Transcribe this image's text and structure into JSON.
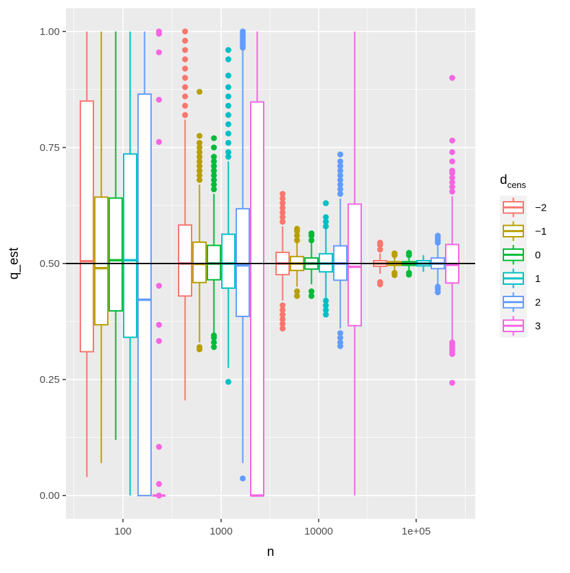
{
  "chart_data": {
    "type": "boxplot",
    "xlabel": "n",
    "ylabel": "q_est",
    "categories": [
      "100",
      "1000",
      "10000",
      "1e+05"
    ],
    "x_scale": "log10",
    "ylim": [
      -0.05,
      1.05
    ],
    "yticks": [
      {
        "value": 0.0,
        "label": "0.00"
      },
      {
        "value": 0.25,
        "label": "0.25"
      },
      {
        "value": 0.5,
        "label": "0.50"
      },
      {
        "value": 0.75,
        "label": "0.75"
      },
      {
        "value": 1.0,
        "label": "1.00"
      }
    ],
    "reference_line": {
      "y": 0.5,
      "color": "#000000"
    },
    "grid": true,
    "legend": {
      "title_main": "d",
      "title_sub": "cens",
      "placement": "right",
      "entries": [
        {
          "label": "−2",
          "color": "#F8766D"
        },
        {
          "label": "−1",
          "color": "#B79F00"
        },
        {
          "label": "0",
          "color": "#00BA38"
        },
        {
          "label": "1",
          "color": "#00BFC4"
        },
        {
          "label": "2",
          "color": "#619CFF"
        },
        {
          "label": "3",
          "color": "#F564E3"
        }
      ]
    },
    "series": [
      {
        "name": "−2",
        "color": "#F8766D",
        "boxes": [
          {
            "q1": 0.31,
            "median": 0.505,
            "q3": 0.85,
            "lo": 0.04,
            "hi": 1.0,
            "outliers": []
          },
          {
            "q1": 0.43,
            "median": 0.5,
            "q3": 0.583,
            "lo": 0.205,
            "hi": 0.81,
            "outliers": [
              0.82,
              0.84,
              0.86,
              0.88,
              0.9,
              0.92,
              0.94,
              0.96,
              0.98,
              1.0
            ]
          },
          {
            "q1": 0.476,
            "median": 0.5,
            "q3": 0.524,
            "lo": 0.42,
            "hi": 0.58,
            "outliers": [
              0.36,
              0.37,
              0.38,
              0.39,
              0.4,
              0.41,
              0.59,
              0.6,
              0.61,
              0.62,
              0.63,
              0.64,
              0.65
            ]
          },
          {
            "q1": 0.494,
            "median": 0.5,
            "q3": 0.506,
            "lo": 0.478,
            "hi": 0.522,
            "outliers": [
              0.455,
              0.46,
              0.53,
              0.54,
              0.545
            ]
          }
        ]
      },
      {
        "name": "−1",
        "color": "#B79F00",
        "boxes": [
          {
            "q1": 0.368,
            "median": 0.49,
            "q3": 0.643,
            "lo": 0.07,
            "hi": 1.0,
            "outliers": []
          },
          {
            "q1": 0.459,
            "median": 0.499,
            "q3": 0.546,
            "lo": 0.33,
            "hi": 0.67,
            "outliers": [
              0.315,
              0.32,
              0.68,
              0.69,
              0.7,
              0.71,
              0.72,
              0.73,
              0.74,
              0.75,
              0.76,
              0.775,
              0.87
            ]
          },
          {
            "q1": 0.485,
            "median": 0.5,
            "q3": 0.515,
            "lo": 0.45,
            "hi": 0.545,
            "outliers": [
              0.43,
              0.44,
              0.55,
              0.56,
              0.57,
              0.575
            ]
          },
          {
            "q1": 0.496,
            "median": 0.5,
            "q3": 0.504,
            "lo": 0.484,
            "hi": 0.516,
            "outliers": [
              0.475,
              0.48,
              0.518,
              0.522
            ]
          }
        ]
      },
      {
        "name": "0",
        "color": "#00BA38",
        "boxes": [
          {
            "q1": 0.398,
            "median": 0.507,
            "q3": 0.641,
            "lo": 0.12,
            "hi": 1.0,
            "outliers": []
          },
          {
            "q1": 0.465,
            "median": 0.5,
            "q3": 0.539,
            "lo": 0.35,
            "hi": 0.65,
            "outliers": [
              0.32,
              0.33,
              0.34,
              0.345,
              0.66,
              0.67,
              0.68,
              0.69,
              0.7,
              0.71,
              0.72,
              0.73,
              0.75,
              0.77
            ]
          },
          {
            "q1": 0.488,
            "median": 0.5,
            "q3": 0.512,
            "lo": 0.455,
            "hi": 0.545,
            "outliers": [
              0.43,
              0.44,
              0.55,
              0.56,
              0.565
            ]
          },
          {
            "q1": 0.496,
            "median": 0.5,
            "q3": 0.504,
            "lo": 0.485,
            "hi": 0.515,
            "outliers": [
              0.476,
              0.48,
              0.518,
              0.523
            ]
          }
        ]
      },
      {
        "name": "1",
        "color": "#00BFC4",
        "boxes": [
          {
            "q1": 0.341,
            "median": 0.507,
            "q3": 0.736,
            "lo": 0.0,
            "hi": 1.0,
            "outliers": []
          },
          {
            "q1": 0.447,
            "median": 0.5,
            "q3": 0.563,
            "lo": 0.275,
            "hi": 0.72,
            "outliers": [
              0.245,
              0.73,
              0.74,
              0.76,
              0.78,
              0.8,
              0.82,
              0.84,
              0.86,
              0.88,
              0.905,
              0.94,
              0.96
            ]
          },
          {
            "q1": 0.482,
            "median": 0.5,
            "q3": 0.521,
            "lo": 0.425,
            "hi": 0.575,
            "outliers": [
              0.39,
              0.4,
              0.41,
              0.42,
              0.58,
              0.59,
              0.6,
              0.63
            ]
          },
          {
            "q1": 0.495,
            "median": 0.5,
            "q3": 0.506,
            "lo": 0.482,
            "hi": 0.518,
            "outliers": []
          }
        ]
      },
      {
        "name": "2",
        "color": "#619CFF",
        "boxes": [
          {
            "q1": 0.0,
            "median": 0.422,
            "q3": 0.865,
            "lo": 0.0,
            "hi": 1.0,
            "outliers": []
          },
          {
            "q1": 0.386,
            "median": 0.496,
            "q3": 0.618,
            "lo": 0.07,
            "hi": 0.96,
            "outliers": [
              0.037,
              0.965,
              0.97,
              0.975,
              0.98,
              0.985,
              0.99,
              0.995,
              1.0
            ]
          },
          {
            "q1": 0.464,
            "median": 0.5,
            "q3": 0.538,
            "lo": 0.36,
            "hi": 0.64,
            "outliers": [
              0.322,
              0.33,
              0.34,
              0.35,
              0.65,
              0.66,
              0.67,
              0.68,
              0.69,
              0.7,
              0.71,
              0.72,
              0.735
            ]
          },
          {
            "q1": 0.489,
            "median": 0.5,
            "q3": 0.512,
            "lo": 0.455,
            "hi": 0.545,
            "outliers": [
              0.438,
              0.445,
              0.45,
              0.545,
              0.55,
              0.555,
              0.56
            ]
          }
        ]
      },
      {
        "name": "3",
        "color": "#F564E3",
        "boxes": [
          {
            "q1": 0.0,
            "median": 0.0,
            "q3": 0.0,
            "lo": 0.0,
            "hi": 0.0,
            "outliers": [
              0.0,
              0.0,
              0.025,
              0.105,
              0.333,
              0.368,
              0.452,
              0.762,
              0.853,
              0.955,
              0.995,
              1.0
            ]
          },
          {
            "q1": 0.0,
            "median": 0.0,
            "q3": 0.848,
            "lo": 0.0,
            "hi": 1.0,
            "outliers": []
          },
          {
            "q1": 0.366,
            "median": 0.493,
            "q3": 0.628,
            "lo": 0.0,
            "hi": 1.0,
            "outliers": []
          },
          {
            "q1": 0.458,
            "median": 0.497,
            "q3": 0.541,
            "lo": 0.335,
            "hi": 0.645,
            "outliers": [
              0.243,
              0.305,
              0.31,
              0.315,
              0.32,
              0.325,
              0.33,
              0.655,
              0.665,
              0.675,
              0.685,
              0.695,
              0.7,
              0.72,
              0.74,
              0.765,
              0.9
            ]
          }
        ]
      }
    ]
  }
}
